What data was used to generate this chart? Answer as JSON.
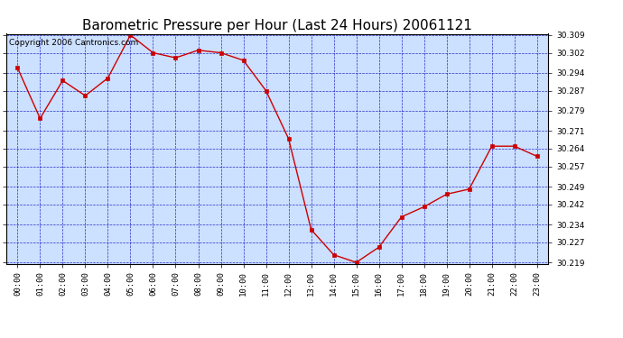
{
  "title": "Barometric Pressure per Hour (Last 24 Hours) 20061121",
  "copyright_text": "Copyright 2006 Cantronics.com",
  "x_labels": [
    "00:00",
    "01:00",
    "02:00",
    "03:00",
    "04:00",
    "05:00",
    "06:00",
    "07:00",
    "08:00",
    "09:00",
    "10:00",
    "11:00",
    "12:00",
    "13:00",
    "14:00",
    "15:00",
    "16:00",
    "17:00",
    "18:00",
    "19:00",
    "20:00",
    "21:00",
    "22:00",
    "23:00"
  ],
  "y_values": [
    30.296,
    30.276,
    30.291,
    30.285,
    30.292,
    30.309,
    30.302,
    30.3,
    30.303,
    30.302,
    30.299,
    30.287,
    30.268,
    30.232,
    30.222,
    30.219,
    30.225,
    30.237,
    30.241,
    30.246,
    30.248,
    30.265,
    30.265,
    30.261
  ],
  "y_min": 30.219,
  "y_max": 30.309,
  "y_ticks": [
    30.219,
    30.227,
    30.234,
    30.242,
    30.249,
    30.257,
    30.264,
    30.271,
    30.279,
    30.287,
    30.294,
    30.302,
    30.309
  ],
  "line_color": "#cc0000",
  "marker_color": "#cc0000",
  "bg_color": "#ffffff",
  "plot_bg_color": "#cce0ff",
  "grid_color": "#0000bb",
  "title_color": "#000000",
  "title_fontsize": 11,
  "copyright_fontsize": 6.5
}
